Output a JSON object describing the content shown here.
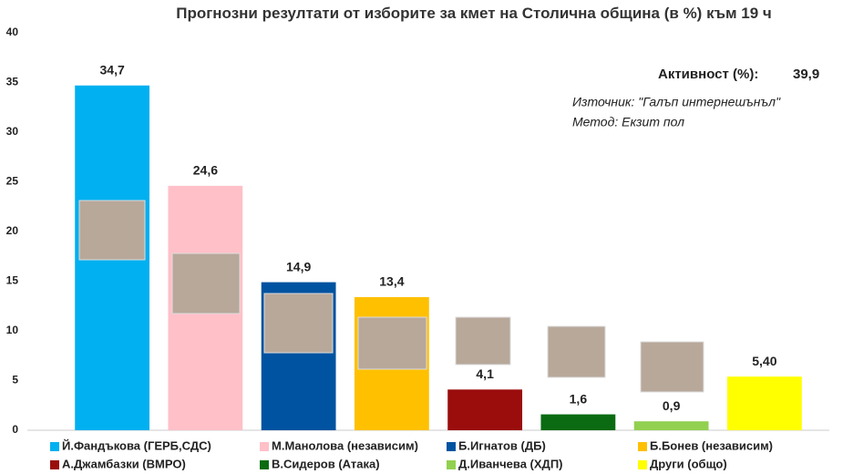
{
  "chart_data": {
    "type": "bar",
    "title": "Прогнозни резултати от изборите за кмет на Столична община (в %) към 19 ч",
    "annotations": [
      "Активност (%):",
      "39,9",
      "Източник: \"Галъп интернешънъл\"",
      "Метод: Екзит пол"
    ],
    "categories": [
      "Й.Фандъкова (ГЕРБ,СДС)",
      "М.Манолова (независим)",
      "Б.Игнатов (ДБ)",
      "Б.Бонев (независим)",
      "А.Джамбазки (ВМРО)",
      "В.Сидеров (Атака)",
      "Д.Иванчева (ХДП)",
      "Други (общо)"
    ],
    "values": [
      34.7,
      24.6,
      14.9,
      13.4,
      4.1,
      1.6,
      0.9,
      5.4
    ],
    "value_labels": [
      "34,7",
      "24,6",
      "14,9",
      "13,4",
      "4,1",
      "1,6",
      "0,9",
      "5,40"
    ],
    "colors": [
      "#00b0f0",
      "#ffc0c8",
      "#0053a0",
      "#ffc000",
      "#9b0d0d",
      "#0b6b12",
      "#92d050",
      "#ffff00"
    ],
    "ylim": [
      0,
      40
    ],
    "yticks": [
      0,
      5,
      10,
      15,
      20,
      25,
      30,
      35,
      40
    ],
    "grid": false
  }
}
